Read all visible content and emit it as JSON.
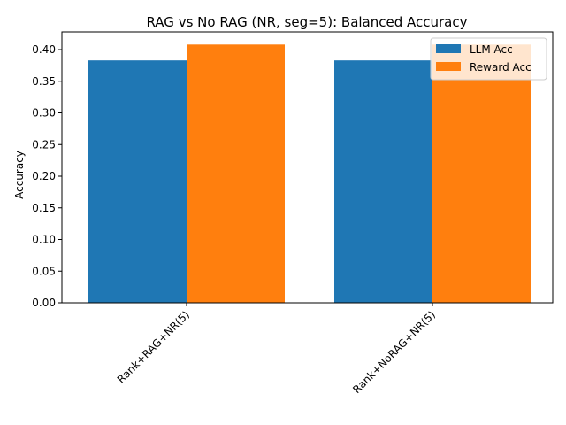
{
  "chart_data": {
    "type": "bar",
    "title": "RAG vs No RAG (NR, seg=5): Balanced Accuracy",
    "xlabel": "",
    "ylabel": "Accuracy",
    "categories": [
      "Rank+RAG+NR(5)",
      "Rank+NoRAG+NR(5)"
    ],
    "series": [
      {
        "name": "LLM Acc",
        "values": [
          0.383,
          0.383
        ],
        "color": "#1f77b4"
      },
      {
        "name": "Reward Acc",
        "values": [
          0.408,
          0.408
        ],
        "color": "#ff7f0e"
      }
    ],
    "ylim": [
      0,
      0.428
    ],
    "yticks": [
      0.0,
      0.05,
      0.1,
      0.15,
      0.2,
      0.25,
      0.3,
      0.35,
      0.4
    ],
    "ytick_labels": [
      "0.00",
      "0.05",
      "0.10",
      "0.15",
      "0.20",
      "0.25",
      "0.30",
      "0.35",
      "0.40"
    ],
    "grid": false,
    "legend_position": "top-right"
  }
}
